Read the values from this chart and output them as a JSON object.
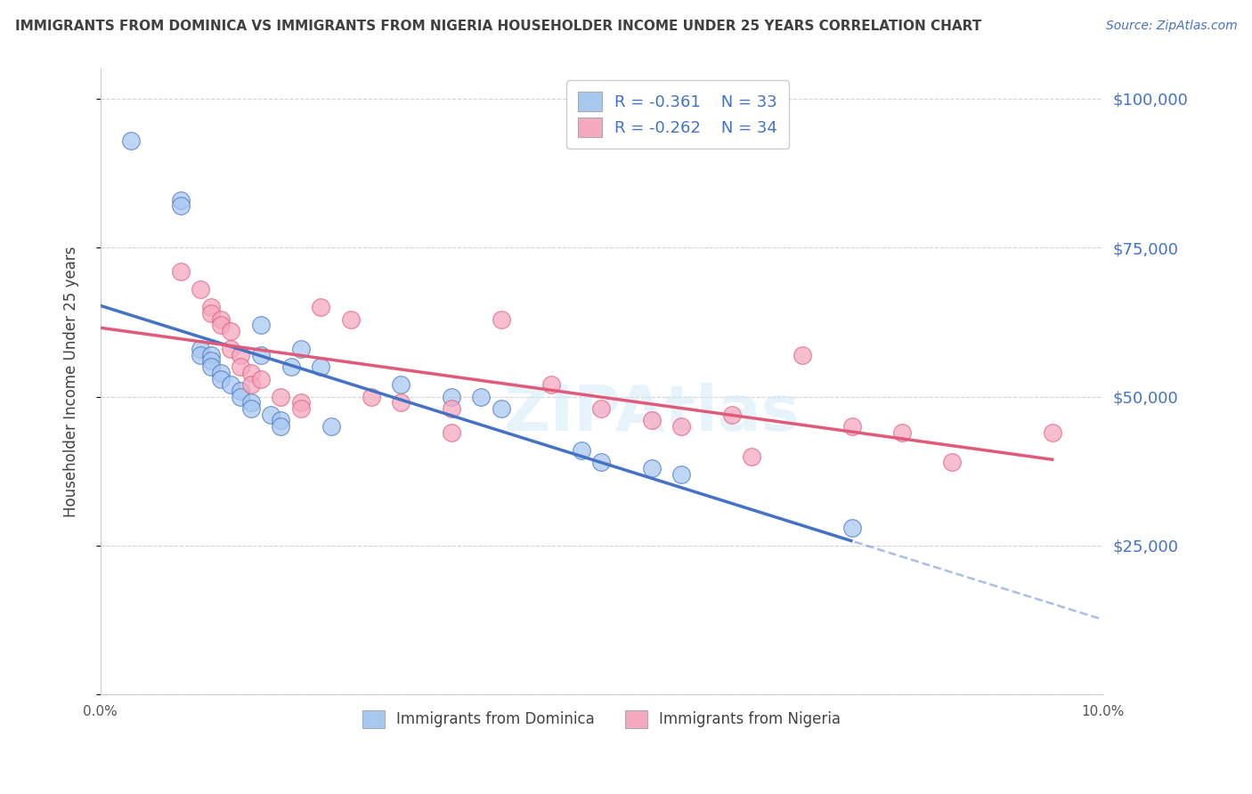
{
  "title": "IMMIGRANTS FROM DOMINICA VS IMMIGRANTS FROM NIGERIA HOUSEHOLDER INCOME UNDER 25 YEARS CORRELATION CHART",
  "source": "Source: ZipAtlas.com",
  "ylabel": "Householder Income Under 25 years",
  "xlim": [
    0.0,
    0.1
  ],
  "ylim": [
    0,
    105000
  ],
  "yticks": [
    0,
    25000,
    50000,
    75000,
    100000
  ],
  "ytick_labels": [
    "",
    "$25,000",
    "$50,000",
    "$75,000",
    "$100,000"
  ],
  "xticks": [
    0.0,
    0.02,
    0.04,
    0.06,
    0.08,
    0.1
  ],
  "xtick_labels": [
    "0.0%",
    "",
    "",
    "",
    "",
    "10.0%"
  ],
  "legend_r1": "-0.361",
  "legend_n1": "33",
  "legend_r2": "-0.262",
  "legend_n2": "34",
  "color_dominica": "#a8c8f0",
  "color_nigeria": "#f5a8c0",
  "color_dominica_line": "#4472c4",
  "color_nigeria_line": "#e05a7a",
  "background_color": "#ffffff",
  "grid_color": "#d3d3d3",
  "title_color": "#404040",
  "axis_label_color": "#404040",
  "right_tick_color": "#4472c4",
  "dominica_x": [
    0.003,
    0.008,
    0.008,
    0.01,
    0.01,
    0.011,
    0.011,
    0.011,
    0.012,
    0.012,
    0.013,
    0.014,
    0.014,
    0.015,
    0.015,
    0.016,
    0.016,
    0.017,
    0.018,
    0.018,
    0.019,
    0.02,
    0.022,
    0.023,
    0.03,
    0.035,
    0.038,
    0.04,
    0.048,
    0.05,
    0.055,
    0.058,
    0.075
  ],
  "dominica_y": [
    93000,
    83000,
    82000,
    58000,
    57000,
    57000,
    56000,
    55000,
    54000,
    53000,
    52000,
    51000,
    50000,
    49000,
    48000,
    62000,
    57000,
    47000,
    46000,
    45000,
    55000,
    58000,
    55000,
    45000,
    52000,
    50000,
    50000,
    48000,
    41000,
    39000,
    38000,
    37000,
    28000
  ],
  "nigeria_x": [
    0.008,
    0.01,
    0.011,
    0.011,
    0.012,
    0.012,
    0.013,
    0.013,
    0.014,
    0.014,
    0.015,
    0.015,
    0.016,
    0.018,
    0.02,
    0.02,
    0.022,
    0.025,
    0.027,
    0.03,
    0.035,
    0.035,
    0.04,
    0.045,
    0.05,
    0.055,
    0.058,
    0.063,
    0.065,
    0.07,
    0.075,
    0.08,
    0.085,
    0.095
  ],
  "nigeria_y": [
    71000,
    68000,
    65000,
    64000,
    63000,
    62000,
    61000,
    58000,
    57000,
    55000,
    54000,
    52000,
    53000,
    50000,
    49000,
    48000,
    65000,
    63000,
    50000,
    49000,
    48000,
    44000,
    63000,
    52000,
    48000,
    46000,
    45000,
    47000,
    40000,
    57000,
    45000,
    44000,
    39000,
    44000
  ]
}
